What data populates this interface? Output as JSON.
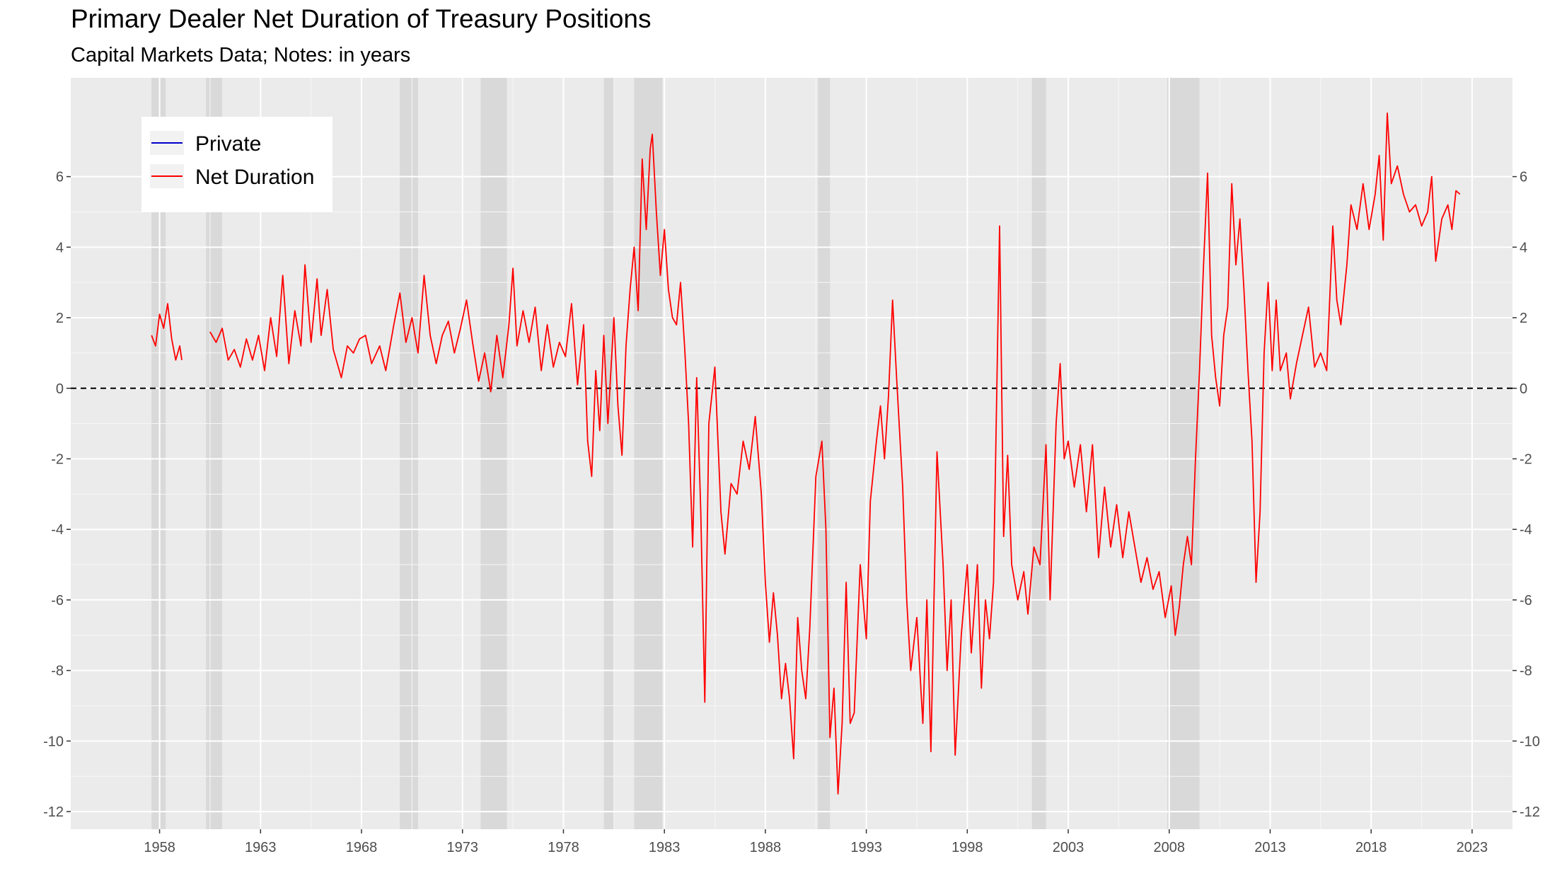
{
  "chart_data": {
    "type": "line",
    "title": "Primary Dealer Net Duration of Treasury Positions",
    "subtitle": "Capital Markets Data; Notes: in years",
    "xlabel": "",
    "ylabel": "",
    "xlim": [
      1953.6,
      2025.0
    ],
    "ylim": [
      -12.5,
      8.8
    ],
    "x_ticks": [
      1958,
      1963,
      1968,
      1973,
      1978,
      1983,
      1988,
      1993,
      1998,
      2003,
      2008,
      2013,
      2018,
      2023
    ],
    "y_ticks": [
      -12,
      -10,
      -8,
      -6,
      -4,
      -2,
      0,
      2,
      4,
      6
    ],
    "reference_line": {
      "y": 0,
      "style": "dashed",
      "color": "#000000"
    },
    "legend": {
      "position": "top-left",
      "entries": [
        {
          "name": "Private",
          "color": "#0000cc"
        },
        {
          "name": "Net Duration",
          "color": "#ff0000"
        }
      ]
    },
    "recession_shading": [
      [
        1957.6,
        1958.3
      ],
      [
        1960.3,
        1961.1
      ],
      [
        1969.9,
        1970.8
      ],
      [
        1973.9,
        1975.2
      ],
      [
        1980.0,
        1980.5
      ],
      [
        1981.5,
        1982.9
      ],
      [
        1990.6,
        1991.2
      ],
      [
        2001.2,
        2001.9
      ],
      [
        2007.9,
        2009.5
      ]
    ],
    "grid": true,
    "series": [
      {
        "name": "Private",
        "color": "#0000cc",
        "points": []
      },
      {
        "name": "Net Duration",
        "color": "#ff0000",
        "segments": [
          [
            [
              1957.6,
              1.5
            ],
            [
              1957.8,
              1.2
            ],
            [
              1958.0,
              2.1
            ],
            [
              1958.2,
              1.7
            ],
            [
              1958.4,
              2.4
            ],
            [
              1958.6,
              1.4
            ],
            [
              1958.8,
              0.8
            ],
            [
              1959.0,
              1.2
            ],
            [
              1959.1,
              0.8
            ]
          ],
          [
            [
              1960.5,
              1.6
            ],
            [
              1960.8,
              1.3
            ],
            [
              1961.1,
              1.7
            ],
            [
              1961.4,
              0.8
            ],
            [
              1961.7,
              1.1
            ],
            [
              1962.0,
              0.6
            ],
            [
              1962.3,
              1.4
            ],
            [
              1962.6,
              0.8
            ],
            [
              1962.9,
              1.5
            ],
            [
              1963.2,
              0.5
            ],
            [
              1963.5,
              2.0
            ],
            [
              1963.8,
              0.9
            ],
            [
              1964.1,
              3.2
            ],
            [
              1964.4,
              0.7
            ],
            [
              1964.7,
              2.2
            ],
            [
              1965.0,
              1.2
            ],
            [
              1965.2,
              3.5
            ],
            [
              1965.5,
              1.3
            ],
            [
              1965.8,
              3.1
            ],
            [
              1966.0,
              1.5
            ],
            [
              1966.3,
              2.8
            ],
            [
              1966.6,
              1.1
            ],
            [
              1967.0,
              0.3
            ],
            [
              1967.3,
              1.2
            ],
            [
              1967.6,
              1.0
            ],
            [
              1967.9,
              1.4
            ],
            [
              1968.2,
              1.5
            ],
            [
              1968.5,
              0.7
            ],
            [
              1968.9,
              1.2
            ],
            [
              1969.2,
              0.5
            ],
            [
              1969.6,
              1.8
            ],
            [
              1969.9,
              2.7
            ],
            [
              1970.2,
              1.3
            ],
            [
              1970.5,
              2.0
            ],
            [
              1970.8,
              1.0
            ],
            [
              1971.1,
              3.2
            ],
            [
              1971.4,
              1.5
            ],
            [
              1971.7,
              0.7
            ],
            [
              1972.0,
              1.5
            ],
            [
              1972.3,
              1.9
            ],
            [
              1972.6,
              1.0
            ],
            [
              1972.9,
              1.7
            ],
            [
              1973.2,
              2.5
            ],
            [
              1973.5,
              1.3
            ],
            [
              1973.8,
              0.2
            ],
            [
              1974.1,
              1.0
            ],
            [
              1974.4,
              -0.1
            ],
            [
              1974.7,
              1.5
            ],
            [
              1975.0,
              0.3
            ],
            [
              1975.3,
              1.8
            ],
            [
              1975.5,
              3.4
            ],
            [
              1975.7,
              1.2
            ],
            [
              1976.0,
              2.2
            ],
            [
              1976.3,
              1.3
            ],
            [
              1976.6,
              2.3
            ],
            [
              1976.9,
              0.5
            ],
            [
              1977.2,
              1.8
            ],
            [
              1977.5,
              0.6
            ],
            [
              1977.8,
              1.3
            ],
            [
              1978.1,
              0.9
            ],
            [
              1978.4,
              2.4
            ],
            [
              1978.7,
              0.1
            ],
            [
              1979.0,
              1.8
            ],
            [
              1979.2,
              -1.5
            ],
            [
              1979.4,
              -2.5
            ],
            [
              1979.6,
              0.5
            ],
            [
              1979.8,
              -1.2
            ],
            [
              1980.0,
              1.5
            ],
            [
              1980.2,
              -1.0
            ],
            [
              1980.5,
              2.0
            ],
            [
              1980.7,
              -0.5
            ],
            [
              1980.9,
              -1.9
            ],
            [
              1981.1,
              1.2
            ],
            [
              1981.3,
              2.8
            ],
            [
              1981.5,
              4.0
            ],
            [
              1981.7,
              2.2
            ],
            [
              1981.9,
              6.5
            ],
            [
              1982.1,
              4.5
            ],
            [
              1982.3,
              6.8
            ],
            [
              1982.4,
              7.2
            ],
            [
              1982.6,
              5.0
            ],
            [
              1982.8,
              3.2
            ],
            [
              1983.0,
              4.5
            ],
            [
              1983.2,
              2.8
            ],
            [
              1983.4,
              2.0
            ],
            [
              1983.6,
              1.8
            ],
            [
              1983.8,
              3.0
            ],
            [
              1984.0,
              1.2
            ],
            [
              1984.2,
              -1.0
            ],
            [
              1984.4,
              -4.5
            ],
            [
              1984.6,
              0.3
            ],
            [
              1984.8,
              -3.5
            ],
            [
              1985.0,
              -8.9
            ],
            [
              1985.2,
              -1.0
            ],
            [
              1985.5,
              0.6
            ],
            [
              1985.8,
              -3.5
            ],
            [
              1986.0,
              -4.7
            ],
            [
              1986.3,
              -2.7
            ],
            [
              1986.6,
              -3.0
            ],
            [
              1986.9,
              -1.5
            ],
            [
              1987.2,
              -2.3
            ],
            [
              1987.5,
              -0.8
            ],
            [
              1987.8,
              -3.0
            ],
            [
              1988.0,
              -5.5
            ],
            [
              1988.2,
              -7.2
            ],
            [
              1988.4,
              -5.8
            ],
            [
              1988.6,
              -7.0
            ],
            [
              1988.8,
              -8.8
            ],
            [
              1989.0,
              -7.8
            ],
            [
              1989.2,
              -8.8
            ],
            [
              1989.4,
              -10.5
            ],
            [
              1989.6,
              -6.5
            ],
            [
              1989.8,
              -8.0
            ],
            [
              1990.0,
              -8.8
            ],
            [
              1990.2,
              -6.8
            ],
            [
              1990.5,
              -2.5
            ],
            [
              1990.8,
              -1.5
            ],
            [
              1991.0,
              -4.0
            ],
            [
              1991.2,
              -9.9
            ],
            [
              1991.4,
              -8.5
            ],
            [
              1991.6,
              -11.5
            ],
            [
              1991.8,
              -9.5
            ],
            [
              1992.0,
              -5.5
            ],
            [
              1992.2,
              -9.5
            ],
            [
              1992.4,
              -9.2
            ],
            [
              1992.7,
              -5.0
            ],
            [
              1993.0,
              -7.1
            ],
            [
              1993.2,
              -3.2
            ],
            [
              1993.5,
              -1.5
            ],
            [
              1993.7,
              -0.5
            ],
            [
              1993.9,
              -2.0
            ],
            [
              1994.1,
              -0.2
            ],
            [
              1994.3,
              2.5
            ],
            [
              1994.5,
              0.3
            ],
            [
              1994.8,
              -2.8
            ],
            [
              1995.0,
              -6.0
            ],
            [
              1995.2,
              -8.0
            ],
            [
              1995.5,
              -6.5
            ],
            [
              1995.8,
              -9.5
            ],
            [
              1996.0,
              -6.0
            ],
            [
              1996.2,
              -10.3
            ],
            [
              1996.5,
              -1.8
            ],
            [
              1996.8,
              -5.0
            ],
            [
              1997.0,
              -8.0
            ],
            [
              1997.2,
              -6.0
            ],
            [
              1997.4,
              -10.4
            ],
            [
              1997.7,
              -7.0
            ],
            [
              1998.0,
              -5.0
            ],
            [
              1998.2,
              -7.5
            ],
            [
              1998.5,
              -5.0
            ],
            [
              1998.7,
              -8.5
            ],
            [
              1998.9,
              -6.0
            ],
            [
              1999.1,
              -7.1
            ],
            [
              1999.3,
              -5.5
            ],
            [
              1999.6,
              4.6
            ],
            [
              1999.8,
              -4.2
            ],
            [
              2000.0,
              -1.9
            ],
            [
              2000.2,
              -5.0
            ],
            [
              2000.5,
              -6.0
            ],
            [
              2000.8,
              -5.2
            ],
            [
              2001.0,
              -6.4
            ],
            [
              2001.3,
              -4.5
            ],
            [
              2001.6,
              -5.0
            ],
            [
              2001.9,
              -1.6
            ],
            [
              2002.1,
              -6.0
            ],
            [
              2002.4,
              -1.0
            ],
            [
              2002.6,
              0.7
            ],
            [
              2002.8,
              -2.0
            ],
            [
              2003.0,
              -1.5
            ],
            [
              2003.3,
              -2.8
            ],
            [
              2003.6,
              -1.6
            ],
            [
              2003.9,
              -3.5
            ],
            [
              2004.2,
              -1.6
            ],
            [
              2004.5,
              -4.8
            ],
            [
              2004.8,
              -2.8
            ],
            [
              2005.1,
              -4.5
            ],
            [
              2005.4,
              -3.3
            ],
            [
              2005.7,
              -4.8
            ],
            [
              2006.0,
              -3.5
            ],
            [
              2006.3,
              -4.5
            ],
            [
              2006.6,
              -5.5
            ],
            [
              2006.9,
              -4.8
            ],
            [
              2007.2,
              -5.7
            ],
            [
              2007.5,
              -5.2
            ],
            [
              2007.8,
              -6.5
            ],
            [
              2008.1,
              -5.6
            ],
            [
              2008.3,
              -7.0
            ],
            [
              2008.5,
              -6.2
            ],
            [
              2008.7,
              -5.0
            ],
            [
              2008.9,
              -4.2
            ],
            [
              2009.1,
              -5.0
            ],
            [
              2009.3,
              -2.0
            ],
            [
              2009.5,
              0.5
            ],
            [
              2009.7,
              3.5
            ],
            [
              2009.9,
              6.1
            ],
            [
              2010.1,
              1.5
            ],
            [
              2010.3,
              0.3
            ],
            [
              2010.5,
              -0.5
            ],
            [
              2010.7,
              1.5
            ],
            [
              2010.9,
              2.3
            ],
            [
              2011.1,
              5.8
            ],
            [
              2011.3,
              3.5
            ],
            [
              2011.5,
              4.8
            ],
            [
              2011.7,
              2.8
            ],
            [
              2011.9,
              0.5
            ],
            [
              2012.1,
              -1.5
            ],
            [
              2012.3,
              -5.5
            ],
            [
              2012.5,
              -3.5
            ],
            [
              2012.7,
              1.0
            ],
            [
              2012.9,
              3.0
            ],
            [
              2013.1,
              0.5
            ],
            [
              2013.3,
              2.5
            ],
            [
              2013.5,
              0.5
            ],
            [
              2013.8,
              1.0
            ],
            [
              2014.0,
              -0.3
            ],
            [
              2014.3,
              0.7
            ],
            [
              2014.6,
              1.5
            ],
            [
              2014.9,
              2.3
            ],
            [
              2015.2,
              0.6
            ],
            [
              2015.5,
              1.0
            ],
            [
              2015.8,
              0.5
            ],
            [
              2016.1,
              4.6
            ],
            [
              2016.3,
              2.5
            ],
            [
              2016.5,
              1.8
            ],
            [
              2016.8,
              3.5
            ],
            [
              2017.0,
              5.2
            ],
            [
              2017.3,
              4.5
            ],
            [
              2017.6,
              5.8
            ],
            [
              2017.9,
              4.5
            ],
            [
              2018.2,
              5.5
            ],
            [
              2018.4,
              6.6
            ],
            [
              2018.6,
              4.2
            ],
            [
              2018.8,
              7.8
            ],
            [
              2019.0,
              5.8
            ],
            [
              2019.3,
              6.3
            ],
            [
              2019.6,
              5.5
            ],
            [
              2019.9,
              5.0
            ],
            [
              2020.2,
              5.2
            ],
            [
              2020.5,
              4.6
            ],
            [
              2020.8,
              5.0
            ],
            [
              2021.0,
              6.0
            ],
            [
              2021.2,
              3.6
            ],
            [
              2021.5,
              4.8
            ],
            [
              2021.8,
              5.2
            ],
            [
              2022.0,
              4.5
            ],
            [
              2022.2,
              5.6
            ],
            [
              2022.4,
              5.5
            ]
          ]
        ]
      }
    ]
  }
}
